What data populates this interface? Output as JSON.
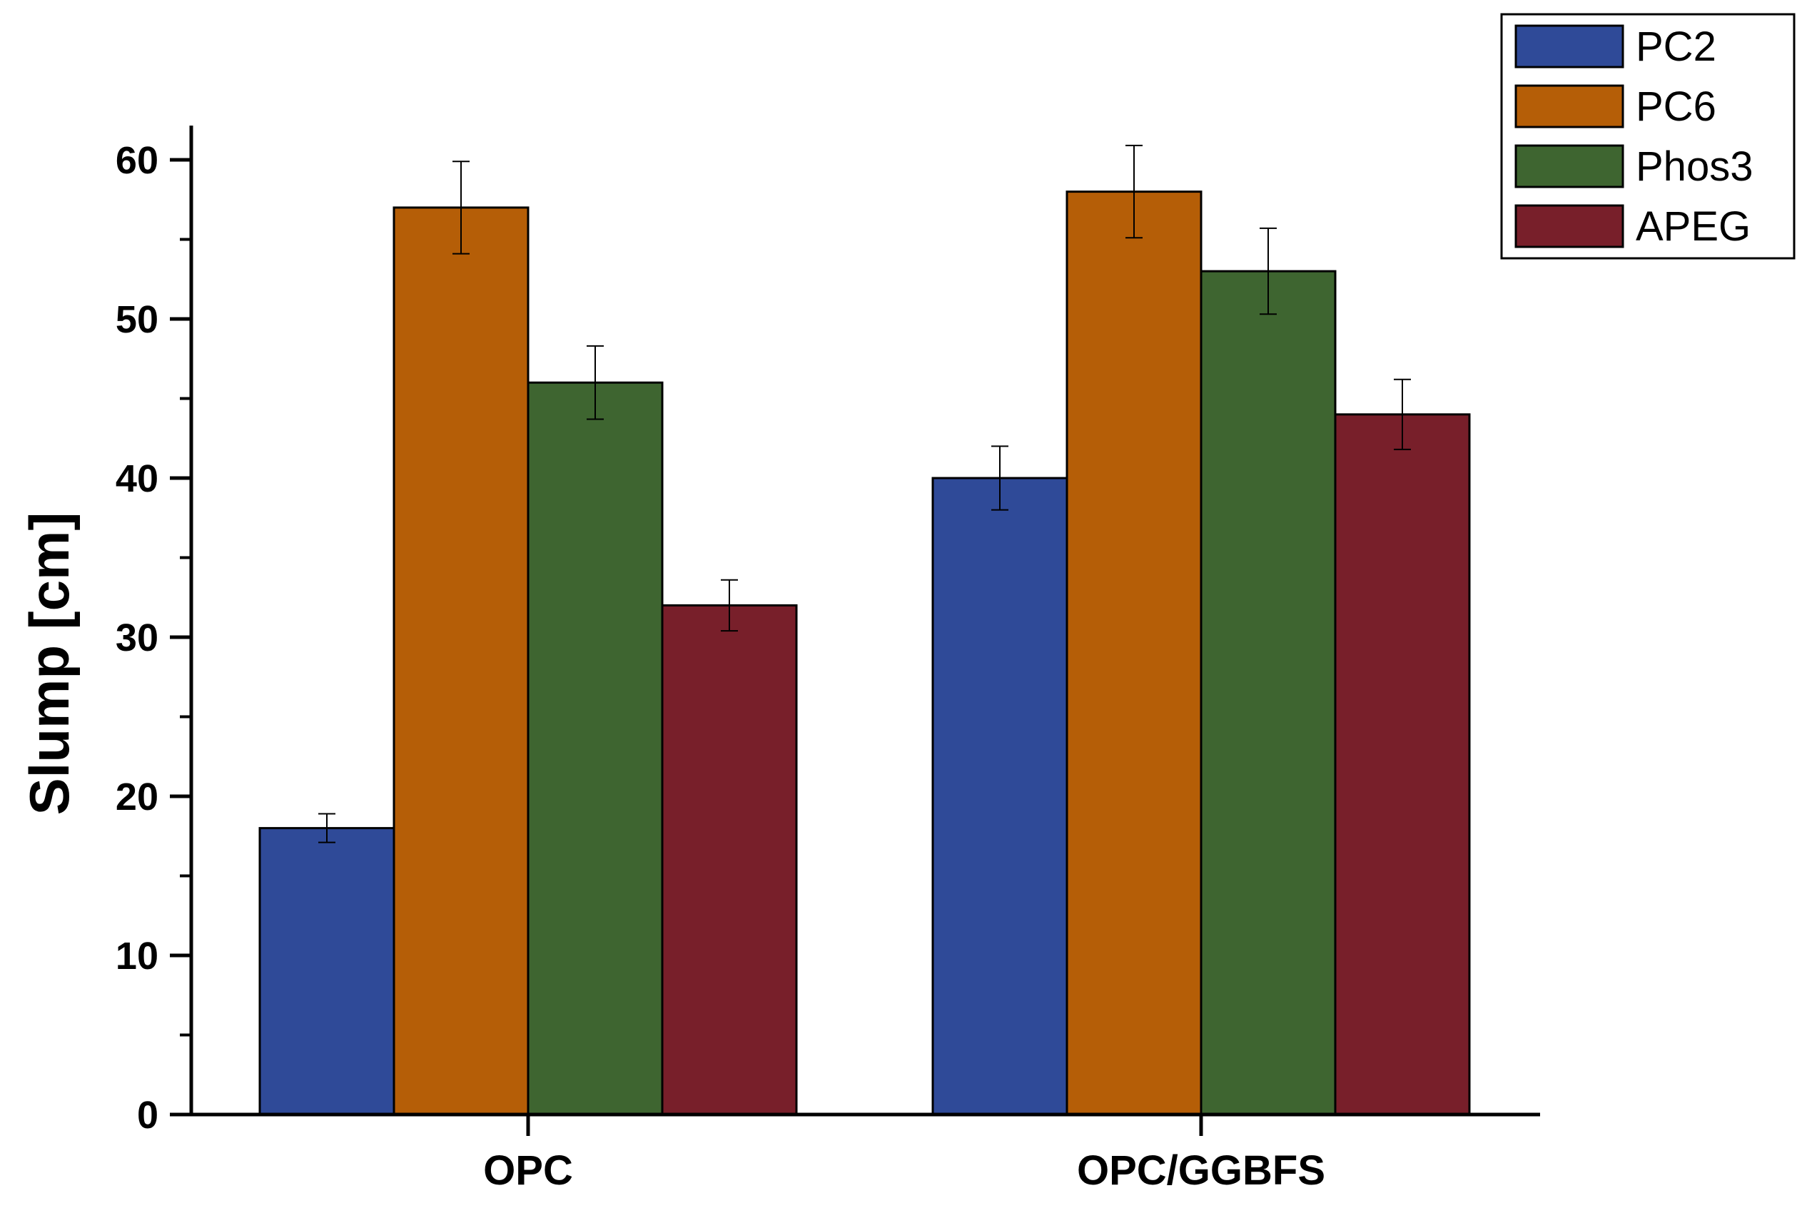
{
  "chart_data": {
    "type": "bar",
    "title": "",
    "xlabel": "",
    "ylabel": "Slump [cm]",
    "ylim": [
      0,
      60
    ],
    "yticks": [
      0,
      10,
      20,
      30,
      40,
      50,
      60
    ],
    "ytick_labels": [
      "0",
      "10",
      "20",
      "30",
      "40",
      "50",
      "60"
    ],
    "grid": false,
    "legend_position": "top-right",
    "categories": [
      "OPC",
      "OPC/GGBFS"
    ],
    "series": [
      {
        "name": "PC2",
        "color": "#2F4A98",
        "values": [
          18,
          40
        ],
        "errors": [
          0.9,
          2.0
        ]
      },
      {
        "name": "PC6",
        "color": "#B55E07",
        "values": [
          57,
          58
        ],
        "errors": [
          2.9,
          2.9
        ]
      },
      {
        "name": "Phos3",
        "color": "#3E6530",
        "values": [
          46,
          53
        ],
        "errors": [
          2.3,
          2.7
        ]
      },
      {
        "name": "APEG",
        "color": "#781F2A",
        "values": [
          32,
          44
        ],
        "errors": [
          1.6,
          2.2
        ]
      }
    ]
  }
}
